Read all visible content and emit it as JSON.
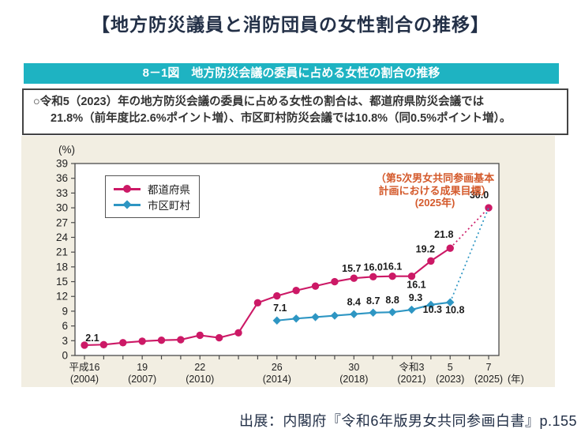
{
  "page": {
    "title": "【地方防災議員と消防団員の女性割合の推移】",
    "source": "出展：内閣府『令和6年版男女共同参画白書』p.155"
  },
  "figure": {
    "banner": "8－1図　地方防災会議の委員に占める女性の割合の推移",
    "summary_lines": [
      "○令和5（2023）年の地方防災会議の委員に占める女性の割合は、都道府県防災会議では",
      "21.8%（前年度比2.6%ポイント増）、市区町村防災会議では10.8%（同0.5%ポイント増）。"
    ]
  },
  "chart_data": {
    "type": "line",
    "y_unit": "(%)",
    "x_unit": "(年)",
    "ylim": [
      0,
      39
    ],
    "y_ticks": [
      0,
      3,
      6,
      9,
      12,
      15,
      18,
      21,
      24,
      27,
      30,
      33,
      36,
      39
    ],
    "x_range": [
      2004,
      2025
    ],
    "grid": false,
    "legend_position": "top-left-inside",
    "x_tick_labels": [
      {
        "year": 2004,
        "line1": "平成16",
        "line2": "(2004)"
      },
      {
        "year": 2007,
        "line1": "19",
        "line2": "(2007)"
      },
      {
        "year": 2010,
        "line1": "22",
        "line2": "(2010)"
      },
      {
        "year": 2014,
        "line1": "26",
        "line2": "(2014)"
      },
      {
        "year": 2018,
        "line1": "30",
        "line2": "(2018)"
      },
      {
        "year": 2021,
        "line1": "令和3",
        "line2": "(2021)"
      },
      {
        "year": 2023,
        "line1": "5",
        "line2": "(2023)"
      },
      {
        "year": 2025,
        "line1": "7",
        "line2": "(2025)"
      }
    ],
    "series": [
      {
        "name": "都道府県",
        "color": "#cc1966",
        "marker": "circle",
        "points": [
          [
            2004,
            2.1
          ],
          [
            2005,
            2.2
          ],
          [
            2006,
            2.6
          ],
          [
            2007,
            2.9
          ],
          [
            2008,
            3.1
          ],
          [
            2009,
            3.2
          ],
          [
            2010,
            4.1
          ],
          [
            2011,
            3.6
          ],
          [
            2012,
            4.6
          ],
          [
            2013,
            10.7
          ],
          [
            2014,
            12.1
          ],
          [
            2015,
            13.2
          ],
          [
            2016,
            14.1
          ],
          [
            2017,
            15.0
          ],
          [
            2018,
            15.7
          ],
          [
            2019,
            16.0
          ],
          [
            2020,
            16.1
          ],
          [
            2021,
            16.1
          ],
          [
            2022,
            19.2
          ],
          [
            2023,
            21.8
          ]
        ],
        "target_point": [
          2025,
          30.0
        ],
        "draw_target_marker": true,
        "labels": [
          {
            "year": 2004,
            "text": "2.1",
            "pos": "above",
            "dx": 10,
            "dy": 3
          },
          {
            "year": 2018,
            "text": "15.7",
            "pos": "above",
            "dx": -3,
            "dy": 0
          },
          {
            "year": 2019,
            "text": "16.0",
            "pos": "above",
            "dx": 0,
            "dy": 0
          },
          {
            "year": 2020,
            "text": "16.1",
            "pos": "above",
            "dx": 0,
            "dy": 0
          },
          {
            "year": 2021,
            "text": "16.1",
            "pos": "below",
            "dx": 6,
            "dy": -2
          },
          {
            "year": 2022,
            "text": "19.2",
            "pos": "above",
            "dx": -7,
            "dy": -3
          },
          {
            "year": 2023,
            "text": "21.8",
            "pos": "above",
            "dx": -8,
            "dy": -5
          },
          {
            "year": 2025,
            "text": "30.0",
            "pos": "above",
            "dx": -12,
            "dy": -4
          }
        ]
      },
      {
        "name": "市区町村",
        "color": "#2e96c3",
        "marker": "diamond",
        "points": [
          [
            2014,
            7.1
          ],
          [
            2015,
            7.5
          ],
          [
            2016,
            7.8
          ],
          [
            2017,
            8.1
          ],
          [
            2018,
            8.4
          ],
          [
            2019,
            8.7
          ],
          [
            2020,
            8.8
          ],
          [
            2021,
            9.3
          ],
          [
            2022,
            10.3
          ],
          [
            2023,
            10.8
          ]
        ],
        "target_point": [
          2025,
          30.0
        ],
        "draw_target_marker": false,
        "labels": [
          {
            "year": 2014,
            "text": "7.1",
            "pos": "above",
            "dx": 4,
            "dy": -4
          },
          {
            "year": 2018,
            "text": "8.4",
            "pos": "above",
            "dx": 0,
            "dy": -3
          },
          {
            "year": 2019,
            "text": "8.7",
            "pos": "above",
            "dx": 0,
            "dy": -3
          },
          {
            "year": 2020,
            "text": "8.8",
            "pos": "above",
            "dx": 0,
            "dy": -3
          },
          {
            "year": 2021,
            "text": "9.3",
            "pos": "above",
            "dx": 5,
            "dy": -3
          },
          {
            "year": 2022,
            "text": "10.3",
            "pos": "below",
            "dx": 2,
            "dy": -7
          },
          {
            "year": 2023,
            "text": "10.8",
            "pos": "below",
            "dx": 6,
            "dy": -3
          }
        ]
      }
    ],
    "annotation": {
      "lines": [
        "（第5次男女共同参画基本",
        "計画における成果目標）",
        "(2025年)"
      ],
      "color": "#d45a2c",
      "target_value_label": "30.0"
    }
  }
}
